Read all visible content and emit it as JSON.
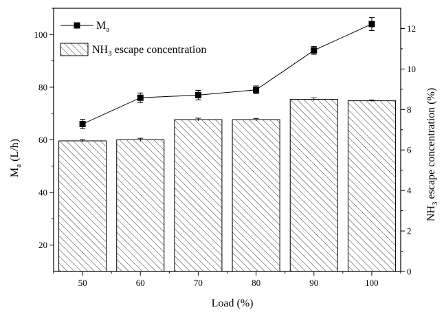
{
  "chart_data": {
    "type": "bar",
    "categories": [
      "50",
      "60",
      "70",
      "80",
      "90",
      "100"
    ],
    "xlabel": "Load (%)",
    "ylabel_left": {
      "main": "M",
      "sub": "a",
      "rest": " (L/h)"
    },
    "ylabel_right": {
      "main": "NH",
      "sub": "3",
      "rest": " escape concentration (%)"
    },
    "ylim_left": [
      10,
      110
    ],
    "ylim_right": [
      0,
      13
    ],
    "yticks_left": [
      20,
      40,
      60,
      80,
      100
    ],
    "yticks_right": [
      0,
      2,
      4,
      6,
      8,
      10,
      12
    ],
    "grid": false,
    "legend_position": "top-left",
    "series": [
      {
        "name": "M_a",
        "legend": {
          "main": "M",
          "sub": "a",
          "rest": ""
        },
        "kind": "line",
        "axis": "left",
        "values": [
          66,
          76,
          77,
          79,
          94,
          104
        ],
        "errors": [
          1.8,
          1.8,
          1.8,
          1.5,
          1.5,
          2.5
        ],
        "color": "#000000"
      },
      {
        "name": "NH3 escape concentration",
        "legend": {
          "main": "NH",
          "sub": "3",
          "rest": " escape concentration"
        },
        "kind": "bar",
        "axis": "right",
        "values": [
          6.45,
          6.5,
          7.5,
          7.5,
          8.5,
          8.43
        ],
        "errors": [
          0.06,
          0.08,
          0.07,
          0.06,
          0.07,
          0.04
        ],
        "color": "#000000"
      }
    ]
  }
}
